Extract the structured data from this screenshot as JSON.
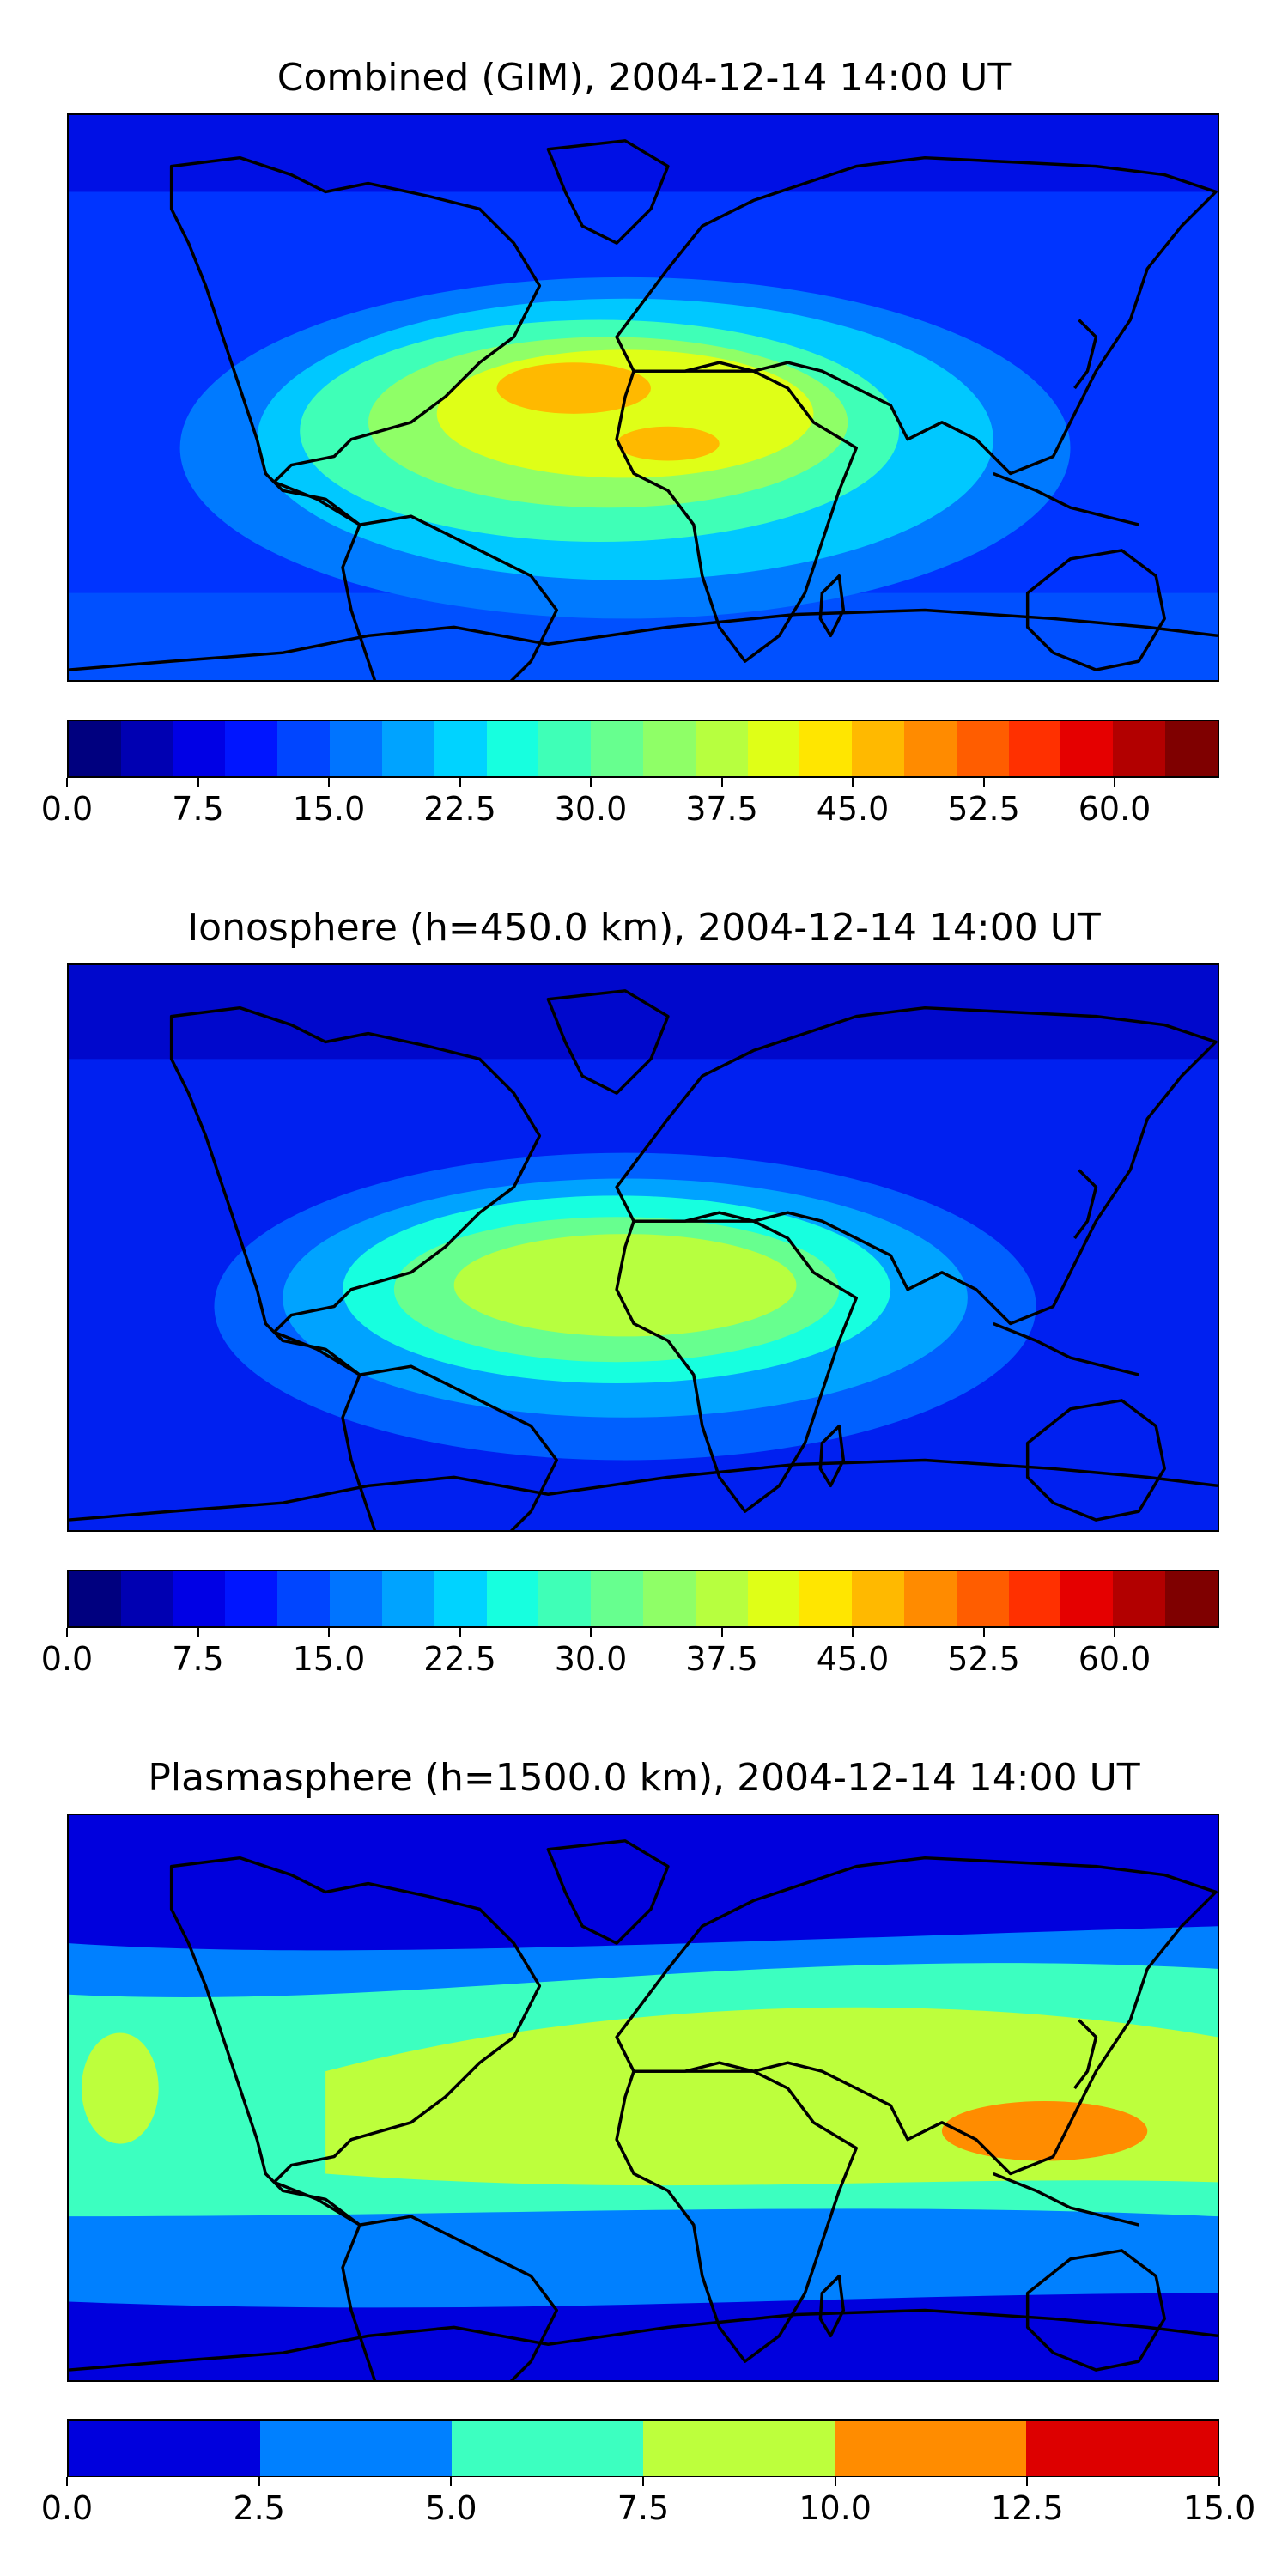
{
  "panels": [
    {
      "title": "Combined (GIM), 2004-12-14 14:00 UT",
      "colorbar": {
        "colors": [
          "#00007f",
          "#0000b2",
          "#0000e5",
          "#0015ff",
          "#0045ff",
          "#0074ff",
          "#00a3ff",
          "#00d3ff",
          "#17ffdf",
          "#3fffb7",
          "#67ff8f",
          "#8fff67",
          "#b7ff3f",
          "#dfff17",
          "#ffe600",
          "#ffb900",
          "#ff8b00",
          "#ff5d00",
          "#ff3000",
          "#e50000",
          "#b20000",
          "#7f0000"
        ],
        "tick_labels": [
          "0.0",
          "7.5",
          "15.0",
          "22.5",
          "30.0",
          "37.5",
          "45.0",
          "52.5",
          "60.0"
        ],
        "tick_values": [
          0,
          7.5,
          15,
          22.5,
          30,
          37.5,
          45,
          52.5,
          60
        ],
        "vmin": 0,
        "vmax": 66
      }
    },
    {
      "title": "Ionosphere  (h=450.0 km), 2004-12-14 14:00 UT",
      "colorbar": {
        "colors": [
          "#00007f",
          "#0000b2",
          "#0000e5",
          "#0015ff",
          "#0045ff",
          "#0074ff",
          "#00a3ff",
          "#00d3ff",
          "#17ffdf",
          "#3fffb7",
          "#67ff8f",
          "#8fff67",
          "#b7ff3f",
          "#dfff17",
          "#ffe600",
          "#ffb900",
          "#ff8b00",
          "#ff5d00",
          "#ff3000",
          "#e50000",
          "#b20000",
          "#7f0000"
        ],
        "tick_labels": [
          "0.0",
          "7.5",
          "15.0",
          "22.5",
          "30.0",
          "37.5",
          "45.0",
          "52.5",
          "60.0"
        ],
        "tick_values": [
          0,
          7.5,
          15,
          22.5,
          30,
          37.5,
          45,
          52.5,
          60
        ],
        "vmin": 0,
        "vmax": 66
      }
    },
    {
      "title": "Plasmasphere (h=1500.0 km), 2004-12-14 14:00 UT",
      "colorbar": {
        "colors": [
          "#0000dd",
          "#0080ff",
          "#3cffc0",
          "#bdff3c",
          "#ff8c00",
          "#dd0000"
        ],
        "tick_labels": [
          "0.0",
          "2.5",
          "5.0",
          "7.5",
          "10.0",
          "12.5",
          "15.0"
        ],
        "tick_values": [
          0,
          2.5,
          5,
          7.5,
          10,
          12.5,
          15
        ],
        "vmin": 0,
        "vmax": 15
      }
    }
  ]
}
